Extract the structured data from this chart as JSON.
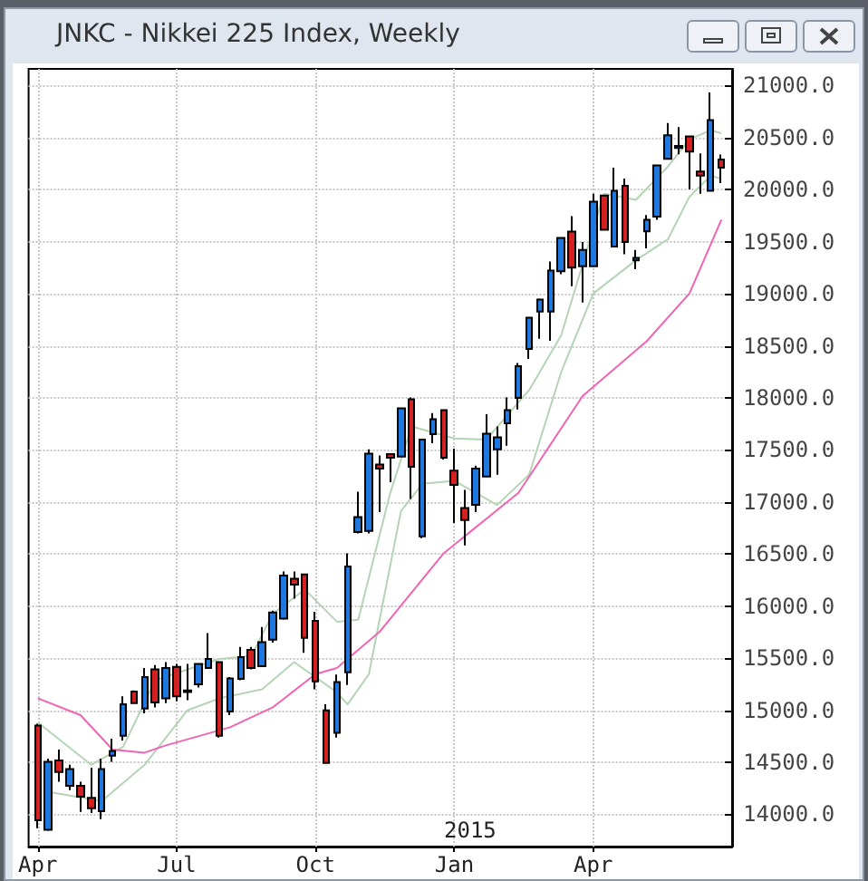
{
  "chart_data": {
    "type": "candlestick",
    "title": "JNKC - Nikkei 225 Index, Weekly",
    "x": [
      "2014-04-07",
      "2014-04-14",
      "2014-04-21",
      "2014-04-28",
      "2014-05-05",
      "2014-05-12",
      "2014-05-19",
      "2014-05-26",
      "2014-06-02",
      "2014-06-09",
      "2014-06-16",
      "2014-06-23",
      "2014-06-30",
      "2014-07-07",
      "2014-07-14",
      "2014-07-21",
      "2014-07-28",
      "2014-08-04",
      "2014-08-11",
      "2014-08-18",
      "2014-08-25",
      "2014-09-01",
      "2014-09-08",
      "2014-09-15",
      "2014-09-22",
      "2014-09-29",
      "2014-10-06",
      "2014-10-13",
      "2014-10-20",
      "2014-10-27",
      "2014-11-03",
      "2014-11-10",
      "2014-11-17",
      "2014-11-24",
      "2014-12-01",
      "2014-12-08",
      "2014-12-15",
      "2014-12-22",
      "2014-12-29",
      "2015-01-05",
      "2015-01-12",
      "2015-01-19",
      "2015-01-26",
      "2015-02-02",
      "2015-02-09",
      "2015-02-16",
      "2015-02-23",
      "2015-03-02",
      "2015-03-09",
      "2015-03-16",
      "2015-03-23",
      "2015-03-30",
      "2015-04-06",
      "2015-04-13",
      "2015-04-20",
      "2015-04-27",
      "2015-05-04",
      "2015-05-11",
      "2015-05-18",
      "2015-05-25",
      "2015-06-01",
      "2015-06-08",
      "2015-06-15",
      "2015-06-22",
      "2015-06-29"
    ],
    "ohlc": [
      [
        14853,
        14870,
        13866,
        13942
      ],
      [
        13850,
        14534,
        13840,
        14505
      ],
      [
        14517,
        14621,
        14313,
        14406
      ],
      [
        14273,
        14475,
        14232,
        14435
      ],
      [
        14273,
        14313,
        14023,
        14169
      ],
      [
        14157,
        14447,
        14012,
        14058
      ],
      [
        14030,
        14534,
        13953,
        14435
      ],
      [
        14562,
        14726,
        14505,
        14609
      ],
      [
        14754,
        15132,
        14709,
        15057
      ],
      [
        15179,
        15190,
        15060,
        15067
      ],
      [
        15015,
        15405,
        14970,
        15318
      ],
      [
        15393,
        15433,
        15027,
        15074
      ],
      [
        15114,
        15462,
        15067,
        15405
      ],
      [
        15416,
        15445,
        15085,
        15132
      ],
      [
        15175,
        15445,
        15097,
        15190
      ],
      [
        15248,
        15445,
        15219,
        15445
      ],
      [
        15405,
        15741,
        15405,
        15492
      ],
      [
        15462,
        15462,
        14736,
        14754
      ],
      [
        14987,
        15318,
        14952,
        15306
      ],
      [
        15300,
        15607,
        15288,
        15509
      ],
      [
        15579,
        15607,
        15393,
        15405
      ],
      [
        15422,
        15799,
        15422,
        15654
      ],
      [
        15677,
        15955,
        15649,
        15938
      ],
      [
        15880,
        16333,
        15868,
        16293
      ],
      [
        16263,
        16333,
        16072,
        16206
      ],
      [
        16304,
        16304,
        15550,
        15694
      ],
      [
        15858,
        15945,
        15201,
        15276
      ],
      [
        14998,
        15057,
        14487,
        14493
      ],
      [
        14783,
        15341,
        14736,
        15271
      ],
      [
        15363,
        16507,
        15241,
        16380
      ],
      [
        16711,
        17099,
        16699,
        16855
      ],
      [
        16721,
        17505,
        16699,
        17465
      ],
      [
        17360,
        17447,
        16902,
        17320
      ],
      [
        17459,
        17459,
        17191,
        17424
      ],
      [
        17435,
        17900,
        17435,
        17900
      ],
      [
        17987,
        18004,
        17029,
        17337
      ],
      [
        16669,
        17599,
        16652,
        17599
      ],
      [
        17651,
        17853,
        17564,
        17795
      ],
      [
        17882,
        17882,
        17407,
        17424
      ],
      [
        17302,
        17512,
        16798,
        17163
      ],
      [
        16942,
        17116,
        16582,
        16826
      ],
      [
        16972,
        17348,
        16902,
        17320
      ],
      [
        17244,
        17842,
        17239,
        17656
      ],
      [
        17505,
        17726,
        17261,
        17621
      ],
      [
        17755,
        18004,
        17540,
        17882
      ],
      [
        17999,
        18335,
        17888,
        18305
      ],
      [
        18469,
        18770,
        18375,
        18770
      ],
      [
        18828,
        18956,
        18567,
        18944
      ],
      [
        18828,
        19310,
        18549,
        19223
      ],
      [
        19217,
        19536,
        19188,
        19536
      ],
      [
        19597,
        19745,
        19072,
        19252
      ],
      [
        19264,
        19497,
        18915,
        19420
      ],
      [
        19264,
        19960,
        19264,
        19885
      ],
      [
        19943,
        19943,
        19615,
        19615
      ],
      [
        19454,
        20211,
        19454,
        19989
      ],
      [
        20036,
        20106,
        19380,
        19497
      ],
      [
        19320,
        19420,
        19235,
        19345
      ],
      [
        19600,
        19757,
        19437,
        19710
      ],
      [
        19740,
        20233,
        19710,
        20233
      ],
      [
        20296,
        20639,
        20296,
        20522
      ],
      [
        20400,
        20600,
        20339,
        20420
      ],
      [
        20511,
        20511,
        20001,
        20366
      ],
      [
        20175,
        20349,
        19960,
        20134
      ],
      [
        19989,
        20934,
        19989,
        20668
      ],
      [
        20290,
        20337,
        20064,
        20210
      ]
    ],
    "colors": [
      "#d42020",
      "#1e78e0",
      "#d42020",
      "#1e78e0",
      "#d42020",
      "#d42020",
      "#1e78e0",
      "#1e78e0",
      "#1e78e0",
      "#d42020",
      "#1e78e0",
      "#d42020",
      "#1e78e0",
      "#d42020",
      "#1e78e0",
      "#1e78e0",
      "#1e78e0",
      "#d42020",
      "#1e78e0",
      "#1e78e0",
      "#d42020",
      "#1e78e0",
      "#1e78e0",
      "#1e78e0",
      "#d42020",
      "#d42020",
      "#d42020",
      "#d42020",
      "#1e78e0",
      "#1e78e0",
      "#1e78e0",
      "#1e78e0",
      "#d42020",
      "#d42020",
      "#1e78e0",
      "#d42020",
      "#1e78e0",
      "#1e78e0",
      "#d42020",
      "#d42020",
      "#d42020",
      "#1e78e0",
      "#1e78e0",
      "#1e78e0",
      "#1e78e0",
      "#1e78e0",
      "#1e78e0",
      "#1e78e0",
      "#1e78e0",
      "#1e78e0",
      "#d42020",
      "#1e78e0",
      "#1e78e0",
      "#d42020",
      "#1e78e0",
      "#d42020",
      "#1e78e0",
      "#1e78e0",
      "#1e78e0",
      "#1e78e0",
      "#1e78e0",
      "#d42020",
      "#d42020",
      "#1e78e0",
      "#d42020"
    ],
    "series": [
      {
        "type": "line",
        "color": "#b4d4b4",
        "x": [
          "2014-04-07",
          "2014-05-12",
          "2014-06-02",
          "2014-06-23",
          "2014-08-04",
          "2014-08-25",
          "2014-09-08",
          "2014-09-29",
          "2014-10-20",
          "2014-11-03",
          "2014-11-24",
          "2014-12-08",
          "2015-01-05",
          "2015-01-26",
          "2015-02-23",
          "2015-03-16",
          "2015-04-13",
          "2015-05-04",
          "2015-05-25",
          "2015-06-08",
          "2015-06-22",
          "2015-06-29"
        ],
        "values": [
          14883,
          14475,
          14649,
          15288,
          15492,
          15520,
          15927,
          16159,
          15850,
          15868,
          17087,
          17726,
          17610,
          17600,
          18074,
          18600,
          19960,
          19902,
          20222,
          20483,
          20570,
          20541
        ]
      },
      {
        "type": "line",
        "color": "#b4d4b4",
        "x": [
          "2014-04-14",
          "2014-05-19",
          "2014-06-16",
          "2014-07-14",
          "2014-08-04",
          "2014-09-01",
          "2014-09-22",
          "2014-10-20",
          "2014-10-27",
          "2014-11-10",
          "2014-12-01",
          "2014-12-15",
          "2015-01-05",
          "2015-02-02",
          "2015-02-23",
          "2015-03-16",
          "2015-04-06",
          "2015-05-04",
          "2015-05-25",
          "2015-06-08",
          "2015-06-22",
          "2015-06-29"
        ],
        "values": [
          14214,
          14127,
          14475,
          14998,
          15114,
          15201,
          15462,
          15172,
          15056,
          15346,
          16912,
          17174,
          17203,
          16971,
          17261,
          18248,
          19002,
          19322,
          19524,
          19931,
          20134,
          20105
        ]
      },
      {
        "type": "line",
        "color": "#f064b4",
        "x": [
          "2014-04-07",
          "2014-05-05",
          "2014-05-26",
          "2014-06-16",
          "2014-06-30",
          "2014-08-11",
          "2014-09-08",
          "2014-10-06",
          "2014-10-20",
          "2014-11-17",
          "2014-12-29",
          "2015-02-16",
          "2015-03-30",
          "2015-05-11",
          "2015-06-08",
          "2015-06-29"
        ],
        "values": [
          15114,
          14952,
          14622,
          14592,
          14662,
          14836,
          15027,
          15346,
          15405,
          15753,
          16507,
          17087,
          18017,
          18544,
          19002,
          19711
        ]
      }
    ],
    "ylim": [
      13690,
      21160
    ],
    "yticks": [
      {
        "value": 14000,
        "label": "14000.0"
      },
      {
        "value": 14500,
        "label": "14500.0"
      },
      {
        "value": 15000,
        "label": "15000.0"
      },
      {
        "value": 15500,
        "label": "15500.0"
      },
      {
        "value": 16000,
        "label": "16000.0"
      },
      {
        "value": 16500,
        "label": "16500.0"
      },
      {
        "value": 17000,
        "label": "17000.0"
      },
      {
        "value": 17500,
        "label": "17500.0"
      },
      {
        "value": 18000,
        "label": "18000.0"
      },
      {
        "value": 18500,
        "label": "18500.0"
      },
      {
        "value": 19000,
        "label": "19000.0"
      },
      {
        "value": 19500,
        "label": "19500.0"
      },
      {
        "value": 20000,
        "label": "20000.0"
      },
      {
        "value": 20500,
        "label": "20500.0"
      },
      {
        "value": 21000,
        "label": "21000.0"
      }
    ],
    "xticks": [
      {
        "value": "2014-04-07",
        "label": "Apr"
      },
      {
        "value": "2014-07-07",
        "label": "Jul"
      },
      {
        "value": "2014-10-06",
        "label": "Oct"
      },
      {
        "value": "2015-01-05",
        "label": "Jan"
      },
      {
        "value": "2015-04-06",
        "label": "Apr"
      }
    ],
    "xlim": [
      "2014-04-01",
      "2015-07-06"
    ],
    "annotations": [
      "2015"
    ],
    "grid": true,
    "marker": "none",
    "line_style": "solid"
  }
}
